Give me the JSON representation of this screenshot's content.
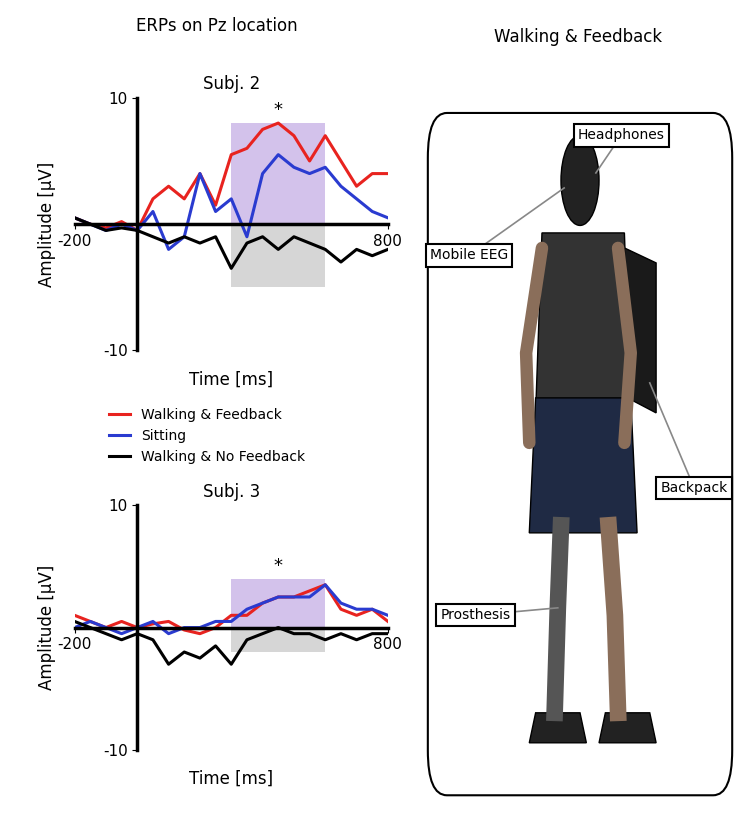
{
  "title": "ERPs on Pz location",
  "chart_data": [
    {
      "type": "line",
      "title": "Subj. 2",
      "x_label": "Time [ms]",
      "y_label": "Amplitude [μV]",
      "x": [
        -200,
        -150,
        -100,
        -50,
        0,
        50,
        100,
        150,
        200,
        250,
        300,
        350,
        400,
        450,
        500,
        550,
        600,
        650,
        700,
        750,
        800
      ],
      "series": [
        {
          "name": "Walking & Feedback",
          "color": "#e8231f",
          "values": [
            0.5,
            0,
            -0.3,
            0.2,
            -0.5,
            2,
            3,
            2,
            4,
            1.5,
            5.5,
            6,
            7.5,
            8,
            7,
            5,
            7,
            5,
            3,
            4,
            4
          ]
        },
        {
          "name": "Sitting",
          "color": "#2a3bd0",
          "values": [
            0.5,
            0,
            -0.5,
            0,
            -0.5,
            1,
            -2,
            -1,
            4,
            1,
            2,
            -1,
            4,
            5.5,
            4.5,
            4,
            4.5,
            3,
            2,
            1,
            0.5
          ]
        },
        {
          "name": "Walking & No Feedback",
          "color": "#000000",
          "values": [
            0.5,
            0,
            -0.5,
            -0.3,
            -0.5,
            -1,
            -1.5,
            -1,
            -1.5,
            -1,
            -3.5,
            -1.5,
            -1,
            -2,
            -1,
            -1.5,
            -2,
            -3,
            -2,
            -2.5,
            -2
          ]
        }
      ],
      "windows": [
        {
          "x": [
            300,
            600
          ],
          "y": [
            0,
            8
          ],
          "color": "#c9b3e6"
        },
        {
          "x": [
            300,
            600
          ],
          "y": [
            -5,
            0
          ],
          "color": "#cccccc"
        }
      ],
      "annotations": [
        {
          "text": "*",
          "x": 450,
          "y": 9
        }
      ],
      "xlim": [
        -200,
        800
      ],
      "xticks": [
        -200,
        800
      ],
      "ylim": [
        -10,
        10
      ],
      "yticks": [
        -10,
        10
      ],
      "legend": "center left"
    },
    {
      "type": "line",
      "title": "Subj. 3",
      "x_label": "Time [ms]",
      "y_label": "Amplitude [μV]",
      "x": [
        -200,
        -150,
        -100,
        -50,
        0,
        50,
        100,
        150,
        200,
        250,
        300,
        350,
        400,
        450,
        500,
        550,
        600,
        650,
        700,
        750,
        800
      ],
      "series": [
        {
          "name": "Walking & Feedback",
          "color": "#e8231f",
          "values": [
            1,
            0.5,
            0,
            0.5,
            0,
            0.3,
            0.5,
            -0.2,
            -0.5,
            0,
            1,
            1,
            2,
            2.5,
            2.5,
            3,
            3.5,
            1.5,
            1,
            1.5,
            0.5
          ]
        },
        {
          "name": "Sitting",
          "color": "#2a3bd0",
          "values": [
            0,
            0.5,
            0,
            -0.5,
            0,
            0.5,
            -0.5,
            0,
            0,
            0.5,
            0.5,
            1.5,
            2,
            2.5,
            2.5,
            2.5,
            3.5,
            2,
            1.5,
            1.5,
            1
          ]
        },
        {
          "name": "Walking & No Feedback",
          "color": "#000000",
          "values": [
            0.5,
            0,
            -0.5,
            -1,
            -0.5,
            -1,
            -3,
            -2,
            -2.5,
            -1.5,
            -3,
            -1,
            -0.5,
            0,
            -0.5,
            -0.5,
            -1,
            -0.5,
            -1,
            -0.5,
            -0.5
          ]
        }
      ],
      "windows": [
        {
          "x": [
            300,
            600
          ],
          "y": [
            0,
            4
          ],
          "color": "#c9b3e6"
        },
        {
          "x": [
            300,
            600
          ],
          "y": [
            -2,
            0
          ],
          "color": "#cccccc"
        }
      ],
      "annotations": [
        {
          "text": "*",
          "x": 450,
          "y": 5
        }
      ],
      "xlim": [
        -200,
        800
      ],
      "xticks": [
        -200,
        800
      ],
      "ylim": [
        -10,
        10
      ],
      "yticks": [
        -10,
        10
      ]
    }
  ],
  "panel": {
    "title": "Walking & Feedback",
    "labels": [
      "Headphones",
      "Mobile EEG",
      "Backpack",
      "Prosthesis"
    ]
  }
}
